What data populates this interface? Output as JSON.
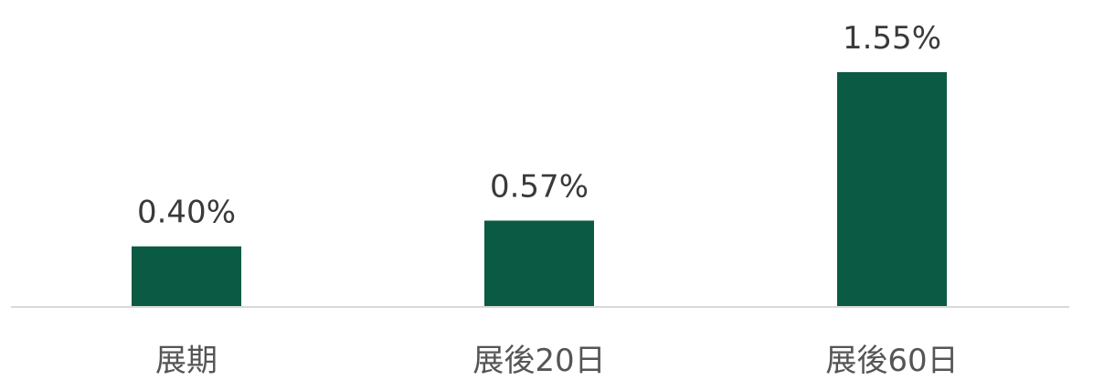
{
  "chart_data": {
    "type": "bar",
    "categories": [
      "展期",
      "展後20日",
      "展後60日"
    ],
    "values": [
      0.4,
      0.57,
      1.55
    ],
    "value_labels": [
      "0.40%",
      "0.57%",
      "1.55%"
    ],
    "ylim": [
      0,
      1.55
    ],
    "grid": false,
    "legend": "none",
    "colors": {
      "bar": "#0b5a43",
      "axis": "#d9d9d9",
      "value_text": "#3a3a3a",
      "category_text": "#555555"
    }
  }
}
